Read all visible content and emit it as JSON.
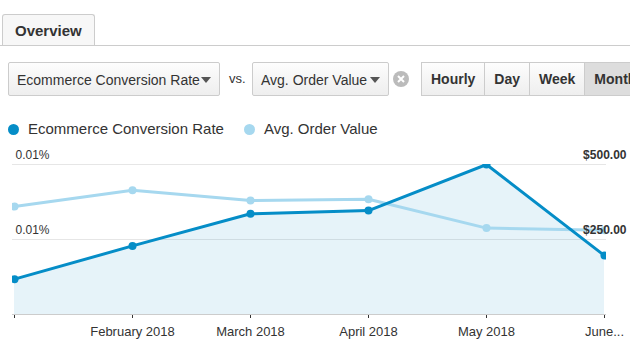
{
  "header": {
    "tab": "Overview",
    "metric_1": "Ecommerce Conversion Rate",
    "vs": "VS.",
    "metric_2": "Avg. Order Value",
    "buttons": [
      "Hourly",
      "Day",
      "Week",
      "Month"
    ],
    "selected": "Month"
  },
  "chart_data": {
    "type": "line",
    "categories": [
      null,
      "February 2018",
      "March 2018",
      "April 2018",
      "May 2018",
      "June..."
    ],
    "series": [
      {
        "name": "Ecommerce Conversion Rate",
        "color": "#058dc7",
        "type": "area",
        "marker": "circle",
        "values": [
          0.0033,
          0.0064,
          0.0094,
          0.0097,
          0.014,
          0.0055
        ]
      },
      {
        "name": "Avg. Order Value",
        "color": "#a6d8ef",
        "type": "line",
        "marker": "circle",
        "axis": "y2",
        "values": [
          360,
          414,
          380,
          384,
          288,
          281
        ]
      }
    ],
    "ylim": [
      0,
      0.014
    ],
    "yticks": [
      {
        "value": 0.007,
        "label": "0.01%"
      },
      {
        "value": 0.014,
        "label": "0.01%"
      }
    ],
    "y2lim": [
      0,
      500
    ],
    "y2ticks": [
      {
        "value": 250,
        "label": "$250.00"
      },
      {
        "value": 500,
        "label": "$500.00"
      }
    ],
    "grid": true
  }
}
